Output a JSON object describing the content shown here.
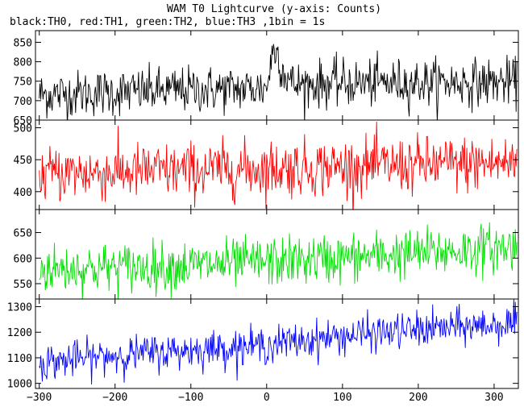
{
  "chart_data": {
    "type": "line",
    "title": "WAM T0 Lightcurve (y-axis: Counts)",
    "subtitle": "black:TH0, red:TH1, green:TH2, blue:TH3 ,1bin = 1s",
    "x_range": [
      -305,
      332
    ],
    "x_ticks": [
      -300,
      -200,
      -100,
      0,
      100,
      200,
      300
    ],
    "x_tick_labels": [
      "−300",
      "−200",
      "−100",
      "0",
      "100",
      "200",
      "300"
    ],
    "panels": [
      {
        "name": "TH0",
        "color": "#000000",
        "ylim": [
          650,
          880
        ],
        "yticks": [
          650,
          700,
          750,
          800,
          850
        ],
        "ytick_labels": [
          "650",
          "700",
          "750",
          "800",
          "850"
        ],
        "trend": {
          "x": [
            -300,
            -100,
            0,
            20,
            100,
            330
          ],
          "y": [
            715,
            728,
            732,
            740,
            745,
            748
          ]
        },
        "peak": {
          "x": [
            0,
            5,
            10,
            15,
            22,
            35
          ],
          "y": [
            0,
            60,
            100,
            80,
            35,
            0
          ]
        },
        "noise_sigma": 30
      },
      {
        "name": "TH1",
        "color": "#ff0000",
        "ylim": [
          372,
          512
        ],
        "yticks": [
          400,
          450,
          500
        ],
        "ytick_labels": [
          "400",
          "450",
          "500"
        ],
        "trend": {
          "x": [
            -300,
            330
          ],
          "y": [
            428,
            445
          ]
        },
        "noise_sigma": 22
      },
      {
        "name": "TH2",
        "color": "#00e000",
        "ylim": [
          520,
          695
        ],
        "yticks": [
          550,
          600,
          650
        ],
        "ytick_labels": [
          "550",
          "600",
          "650"
        ],
        "trend": {
          "x": [
            -300,
            -100,
            100,
            330
          ],
          "y": [
            578,
            585,
            600,
            622
          ]
        },
        "noise_sigma": 24
      },
      {
        "name": "TH3",
        "color": "#0000ff",
        "ylim": [
          980,
          1330
        ],
        "yticks": [
          1000,
          1100,
          1200,
          1300
        ],
        "ytick_labels": [
          "1000",
          "1100",
          "1200",
          "1300"
        ],
        "trend": {
          "x": [
            -300,
            -200,
            -100,
            0,
            100,
            200,
            330
          ],
          "y": [
            1080,
            1110,
            1130,
            1150,
            1185,
            1210,
            1235
          ]
        },
        "noise_sigma": 35
      }
    ]
  }
}
